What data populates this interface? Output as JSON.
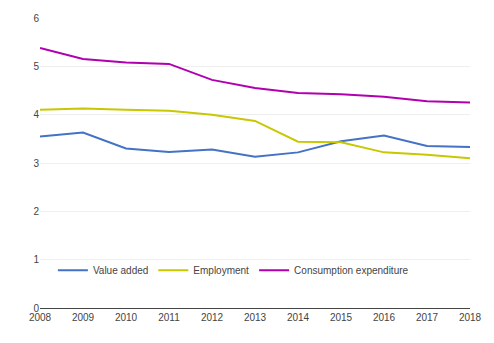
{
  "chart_data": {
    "type": "line",
    "x": [
      2008,
      2009,
      2010,
      2011,
      2012,
      2013,
      2014,
      2015,
      2016,
      2017,
      2018
    ],
    "series": [
      {
        "name": "Value added",
        "color": "#4472c4",
        "values": [
          3.55,
          3.63,
          3.3,
          3.23,
          3.28,
          3.13,
          3.22,
          3.45,
          3.57,
          3.35,
          3.33
        ]
      },
      {
        "name": "Employment",
        "color": "#c8c800",
        "values": [
          4.1,
          4.13,
          4.1,
          4.08,
          4.0,
          3.87,
          3.44,
          3.43,
          3.22,
          3.17,
          3.1
        ]
      },
      {
        "name": "Consumption expenditure",
        "color": "#b000b0",
        "values": [
          5.38,
          5.15,
          5.08,
          5.05,
          4.72,
          4.55,
          4.45,
          4.42,
          4.37,
          4.28,
          4.25
        ]
      }
    ],
    "xlim": [
      2008,
      2018
    ],
    "xticks": [
      2008,
      2009,
      2010,
      2011,
      2012,
      2013,
      2014,
      2015,
      2016,
      2017,
      2018
    ],
    "ylim": [
      0,
      6
    ],
    "yticks": [
      0,
      1,
      2,
      3,
      4,
      5,
      6
    ],
    "grid": true,
    "legend": "lower left"
  }
}
